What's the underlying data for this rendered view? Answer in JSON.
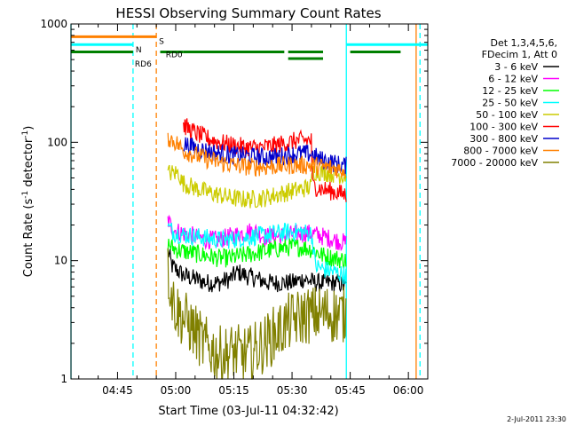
{
  "chart_data": {
    "type": "line",
    "title": "HESSI Observing Summary Count Rates",
    "xlabel": "Start Time (03-Jul-11 04:32:42)",
    "ylabel_main": "Count Rate (s",
    "ylabel_sup1": "-1",
    "ylabel_mid": " detector",
    "ylabel_sup2": "-1",
    "ylabel_end": ")",
    "yscale": "log",
    "ylim": [
      1,
      1000
    ],
    "xlim_minutes": [
      -12,
      80
    ],
    "x_ticks": [
      "04:45",
      "05:00",
      "05:15",
      "05:30",
      "05:45",
      "06:00"
    ],
    "y_ticks": [
      "1",
      "10",
      "100",
      "1000"
    ],
    "timestamp": "2-Jul-2011 23:30",
    "legend": {
      "header": [
        "Det 1,3,4,5,6,",
        "FDecim 1, Att 0"
      ],
      "entries": [
        {
          "label": "3 - 6 keV",
          "color": "#000000"
        },
        {
          "label": "6 - 12 keV",
          "color": "#ff00ff"
        },
        {
          "label": "12 - 25 keV",
          "color": "#00ff00"
        },
        {
          "label": "25 - 50 keV",
          "color": "#00ffff"
        },
        {
          "label": "50 - 100 keV",
          "color": "#cccc00"
        },
        {
          "label": "100 - 300 keV",
          "color": "#ff0000"
        },
        {
          "label": "300 - 800 keV",
          "color": "#0000cc"
        },
        {
          "label": "800 - 7000 keV",
          "color": "#ff8000"
        },
        {
          "label": "7000 - 20000 keV",
          "color": "#808000"
        }
      ]
    },
    "flags": [
      {
        "label": "S",
        "color": "#ff8000",
        "level": 780,
        "label_level": 780,
        "segments": [
          [
            -12,
            10
          ]
        ]
      },
      {
        "label": "N",
        "color": "#00ffff",
        "level": 670,
        "label_level": 660,
        "segments": [
          [
            -12,
            4
          ],
          [
            59,
            80
          ]
        ]
      },
      {
        "label": "RD6",
        "color": "#008000",
        "level": 580,
        "label_level": 500,
        "segments": [
          [
            -12,
            4
          ],
          [
            11,
            17
          ]
        ]
      },
      {
        "label": "RD0",
        "color": "#008000",
        "level": 580,
        "label_level": 600,
        "segments": [
          [
            17,
            43
          ],
          [
            44,
            53
          ],
          [
            60,
            73
          ]
        ]
      },
      {
        "label": "",
        "color": "#008000",
        "level": 510,
        "label_level": 510,
        "segments": [
          [
            44,
            53
          ]
        ]
      }
    ],
    "vlines": [
      {
        "x": -12,
        "color": "#00ffff",
        "style": "solid"
      },
      {
        "x": 4,
        "color": "#00ffff",
        "style": "dashed"
      },
      {
        "x": 10,
        "color": "#ff8000",
        "style": "dashed"
      },
      {
        "x": 59,
        "color": "#00ffff",
        "style": "solid"
      },
      {
        "x": 77,
        "color": "#ff8000",
        "style": "solid"
      },
      {
        "x": 78,
        "color": "#00ffff",
        "style": "dashed"
      }
    ],
    "time_range_minutes": [
      13,
      59
    ],
    "series": [
      {
        "name": "3 - 6 keV",
        "color": "#000000",
        "x": [
          13,
          14,
          15,
          17,
          20,
          23,
          26,
          29,
          31,
          33,
          36,
          39,
          42,
          45,
          48,
          51,
          54,
          57,
          59
        ],
        "y": [
          12,
          9,
          8.5,
          7.5,
          7,
          6.5,
          6.5,
          7,
          8,
          7.5,
          7,
          6.5,
          6.5,
          6.5,
          7,
          6.5,
          6.5,
          6.5,
          6
        ]
      },
      {
        "name": "6 - 12 keV",
        "color": "#ff00ff",
        "x": [
          13,
          14,
          15,
          17,
          20,
          23,
          26,
          29,
          32,
          35,
          38,
          41,
          44,
          47,
          50,
          53,
          56,
          59
        ],
        "y": [
          22,
          19,
          18,
          17,
          16,
          15,
          15,
          16,
          17,
          18,
          16,
          16,
          16.5,
          17,
          17,
          16,
          15,
          14
        ]
      },
      {
        "name": "12 - 25 keV",
        "color": "#00ff00",
        "x": [
          13,
          14,
          15,
          17,
          20,
          23,
          26,
          29,
          32,
          35,
          38,
          41,
          44,
          47,
          50,
          53,
          56,
          59
        ],
        "y": [
          14,
          13,
          12.5,
          12,
          11.5,
          11,
          10.5,
          10.5,
          11,
          11.5,
          12,
          12.5,
          13,
          13,
          12.5,
          11,
          10.5,
          10
        ]
      },
      {
        "name": "25 - 50 keV",
        "color": "#00ffff",
        "x": [
          13,
          14,
          15,
          17,
          20,
          23,
          26,
          29,
          32,
          35,
          38,
          41,
          44,
          47,
          50,
          51,
          53,
          56,
          59
        ],
        "y": [
          19,
          18,
          17,
          16.5,
          16,
          15.5,
          15,
          15,
          15.5,
          16,
          16.5,
          17,
          17.5,
          17.5,
          17,
          9,
          8.5,
          8,
          7.5
        ]
      },
      {
        "name": "50 - 100 keV",
        "color": "#cccc00",
        "x": [
          13,
          16,
          16.2,
          17,
          20,
          23,
          26,
          29,
          32,
          35,
          38,
          41,
          44,
          47,
          50,
          50.2,
          53,
          56,
          59
        ],
        "y": [
          55,
          55,
          48,
          45,
          41,
          38,
          36,
          34,
          33,
          33,
          34,
          36,
          38,
          40,
          42,
          57,
          56,
          54,
          52
        ]
      },
      {
        "name": "100 - 300 keV",
        "color": "#ff0000",
        "x": [
          17,
          19,
          22,
          25,
          28,
          31,
          34,
          37,
          40,
          43,
          46,
          48,
          50,
          50.2,
          53,
          56,
          59
        ],
        "y": [
          140,
          125,
          112,
          103,
          97,
          93,
          90,
          90,
          93,
          98,
          103,
          104,
          104,
          43,
          40,
          38,
          36
        ]
      },
      {
        "name": "300 - 800 keV",
        "color": "#0000cc",
        "x": [
          17,
          19,
          22,
          25,
          28,
          31,
          34,
          37,
          40,
          43,
          46,
          49,
          50,
          52,
          55,
          57,
          59
        ],
        "y": [
          98,
          92,
          86,
          82,
          79,
          77,
          76,
          75,
          75,
          77,
          80,
          80,
          80,
          72,
          68,
          65,
          63
        ]
      },
      {
        "name": "800 - 7000 keV",
        "color": "#ff8000",
        "x": [
          13,
          15,
          17,
          20,
          23,
          26,
          29,
          32,
          35,
          38,
          41,
          44,
          47,
          50,
          53,
          56,
          59
        ],
        "y": [
          110,
          100,
          85,
          78,
          72,
          68,
          65,
          63,
          62,
          62,
          63,
          64,
          64,
          64,
          62,
          60,
          58
        ]
      },
      {
        "name": "7000 - 20000 keV",
        "color": "#808000",
        "x": [
          13,
          14,
          15,
          16,
          18,
          20,
          22,
          24,
          26,
          28,
          30,
          32,
          34,
          36,
          38,
          40,
          42,
          44,
          46,
          48,
          50,
          52,
          54,
          56,
          58,
          59
        ],
        "y": [
          8,
          5,
          4,
          3.5,
          3,
          2.5,
          2,
          1.8,
          1.6,
          1.6,
          1.7,
          1.6,
          1.6,
          1.8,
          2,
          2.3,
          2.6,
          3,
          3.2,
          3.4,
          3.5,
          3.5,
          3.6,
          3.5,
          3.5,
          3.4
        ]
      }
    ]
  }
}
